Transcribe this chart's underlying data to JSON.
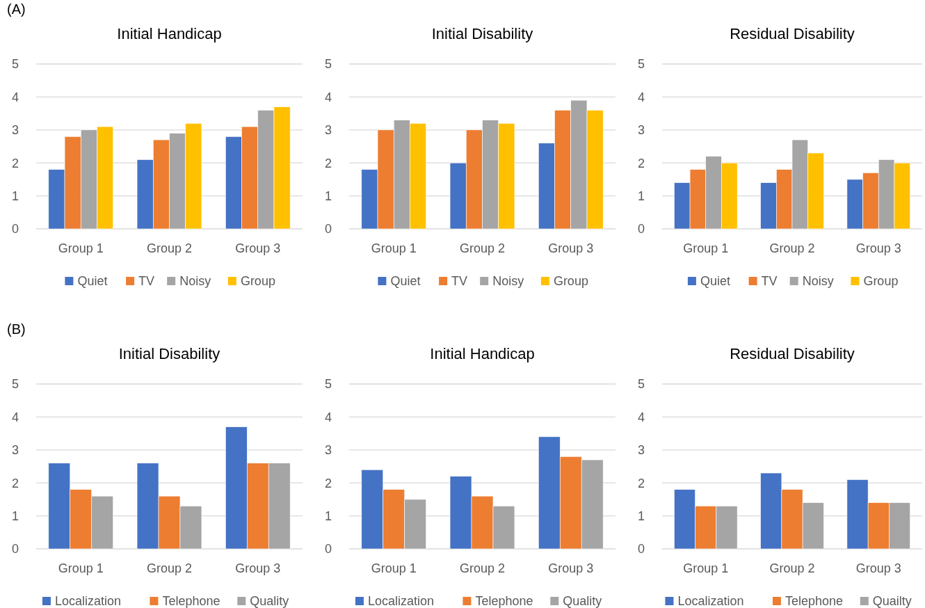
{
  "chart_data": [
    {
      "type": "bar",
      "title": "Initial Handicap",
      "annotations": [
        "(A)"
      ],
      "categories": [
        "Group 1",
        "Group 2",
        "Group 3"
      ],
      "series": [
        {
          "name": "Quiet",
          "color": "#4472c4",
          "values": [
            1.8,
            2.1,
            2.8
          ]
        },
        {
          "name": "TV",
          "color": "#ed7d31",
          "values": [
            2.8,
            2.7,
            3.1
          ]
        },
        {
          "name": "Noisy",
          "color": "#a5a5a5",
          "values": [
            3.0,
            2.9,
            3.6
          ]
        },
        {
          "name": "Group",
          "color": "#ffc000",
          "values": [
            3.1,
            3.2,
            3.7
          ]
        }
      ],
      "ylim": [
        0,
        5
      ],
      "yticks": [
        0,
        1,
        2,
        3,
        4,
        5
      ],
      "grid": "y",
      "legend": "bottom"
    },
    {
      "type": "bar",
      "title": "Initial Disability",
      "categories": [
        "Group 1",
        "Group 2",
        "Group 3"
      ],
      "series": [
        {
          "name": "Quiet",
          "color": "#4472c4",
          "values": [
            1.8,
            2.0,
            2.6
          ]
        },
        {
          "name": "TV",
          "color": "#ed7d31",
          "values": [
            3.0,
            3.0,
            3.6
          ]
        },
        {
          "name": "Noisy",
          "color": "#a5a5a5",
          "values": [
            3.3,
            3.3,
            3.9
          ]
        },
        {
          "name": "Group",
          "color": "#ffc000",
          "values": [
            3.2,
            3.2,
            3.6
          ]
        }
      ],
      "ylim": [
        0,
        5
      ],
      "yticks": [
        0,
        1,
        2,
        3,
        4,
        5
      ],
      "grid": "y",
      "legend": "bottom"
    },
    {
      "type": "bar",
      "title": "Residual Disability",
      "categories": [
        "Group 1",
        "Group 2",
        "Group 3"
      ],
      "series": [
        {
          "name": "Quiet",
          "color": "#4472c4",
          "values": [
            1.4,
            1.4,
            1.5
          ]
        },
        {
          "name": "TV",
          "color": "#ed7d31",
          "values": [
            1.8,
            1.8,
            1.7
          ]
        },
        {
          "name": "Noisy",
          "color": "#a5a5a5",
          "values": [
            2.2,
            2.7,
            2.1
          ]
        },
        {
          "name": "Group",
          "color": "#ffc000",
          "values": [
            2.0,
            2.3,
            2.0
          ]
        }
      ],
      "ylim": [
        0,
        5
      ],
      "yticks": [
        0,
        1,
        2,
        3,
        4,
        5
      ],
      "grid": "y",
      "legend": "bottom"
    },
    {
      "type": "bar",
      "title": "Initial Disability",
      "annotations": [
        "(B)"
      ],
      "categories": [
        "Group 1",
        "Group 2",
        "Group 3"
      ],
      "series": [
        {
          "name": "Localization",
          "color": "#4472c4",
          "values": [
            2.6,
            2.6,
            3.7
          ]
        },
        {
          "name": "Telephone",
          "color": "#ed7d31",
          "values": [
            1.8,
            1.6,
            2.6
          ]
        },
        {
          "name": "Quality",
          "color": "#a5a5a5",
          "values": [
            1.6,
            1.3,
            2.6
          ]
        }
      ],
      "ylim": [
        0,
        5
      ],
      "yticks": [
        0,
        1,
        2,
        3,
        4,
        5
      ],
      "grid": "y",
      "legend": "bottom"
    },
    {
      "type": "bar",
      "title": "Initial Handicap",
      "categories": [
        "Group 1",
        "Group 2",
        "Group 3"
      ],
      "series": [
        {
          "name": "Localization",
          "color": "#4472c4",
          "values": [
            2.4,
            2.2,
            3.4
          ]
        },
        {
          "name": "Telephone",
          "color": "#ed7d31",
          "values": [
            1.8,
            1.6,
            2.8
          ]
        },
        {
          "name": "Quality",
          "color": "#a5a5a5",
          "values": [
            1.5,
            1.3,
            2.7
          ]
        }
      ],
      "ylim": [
        0,
        5
      ],
      "yticks": [
        0,
        1,
        2,
        3,
        4,
        5
      ],
      "grid": "y",
      "legend": "bottom"
    },
    {
      "type": "bar",
      "title": "Residual Disability",
      "categories": [
        "Group 1",
        "Group 2",
        "Group 3"
      ],
      "series": [
        {
          "name": "Localization",
          "color": "#4472c4",
          "values": [
            1.8,
            2.3,
            2.1
          ]
        },
        {
          "name": "Telephone",
          "color": "#ed7d31",
          "values": [
            1.3,
            1.8,
            1.4
          ]
        },
        {
          "name": "Quailty",
          "color": "#a5a5a5",
          "values": [
            1.3,
            1.4,
            1.4
          ]
        }
      ],
      "ylim": [
        0,
        5
      ],
      "yticks": [
        0,
        1,
        2,
        3,
        4,
        5
      ],
      "grid": "y",
      "legend": "bottom"
    }
  ]
}
